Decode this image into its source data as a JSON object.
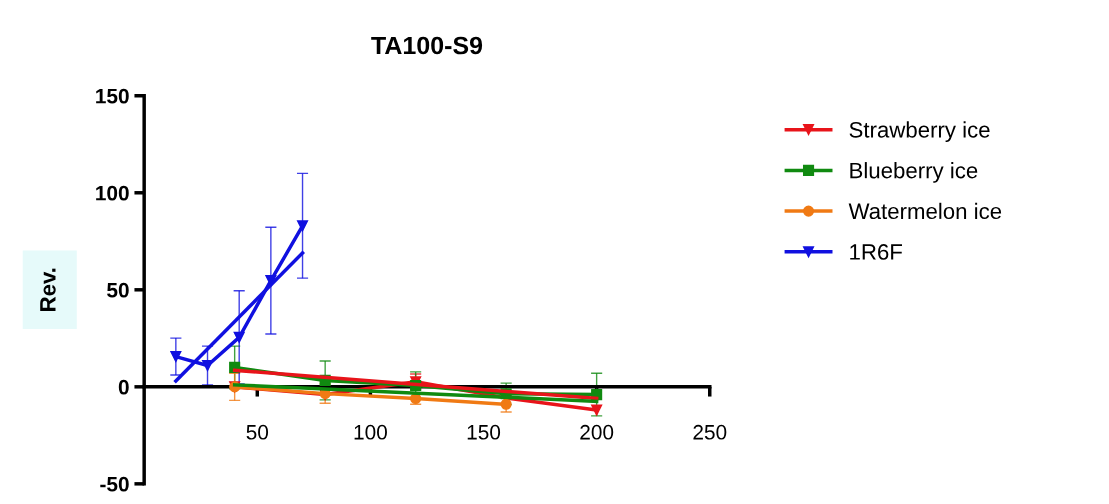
{
  "chart_data": {
    "type": "line",
    "title": "TA100-S9",
    "ylabel": "Rev.",
    "xlim": [
      0,
      250
    ],
    "xticks": [
      50,
      100,
      150,
      200,
      250
    ],
    "ylim": [
      -50,
      150
    ],
    "yticks": [
      -50,
      0,
      50,
      100,
      150
    ],
    "grid": false,
    "legend": "right",
    "line_style": "solid",
    "series": [
      {
        "name": "Strawberry ice",
        "color": "#e8141a",
        "marker": "triangle",
        "x": [
          40,
          80,
          120,
          160,
          200
        ],
        "values": [
          0,
          -4,
          2.6,
          -5.7,
          -12
        ],
        "errors": [
          null,
          null,
          4,
          null,
          null
        ]
      },
      {
        "name": "Blueberry ice",
        "color": "#108a10",
        "marker": "square",
        "x": [
          40,
          80,
          120,
          160,
          200
        ],
        "values": [
          10,
          3.3,
          0.7,
          -3.6,
          -4
        ],
        "errors": [
          11,
          10,
          7,
          5.5,
          11
        ]
      },
      {
        "name": "Watermelon ice",
        "color": "#f07a14",
        "marker": "circle",
        "x": [
          40,
          80,
          120,
          160
        ],
        "values": [
          0,
          -3.5,
          -6,
          -9
        ],
        "errors": [
          7,
          5,
          3,
          4
        ]
      },
      {
        "name": "1R6F",
        "color": "#1010e0",
        "marker": "triangle",
        "x": [
          14,
          28,
          42,
          56,
          70
        ],
        "values": [
          15.6,
          11,
          25.5,
          54.7,
          83
        ],
        "errors": [
          9.5,
          10,
          24,
          27.5,
          27
        ]
      },
      {
        "color": "#e8141a",
        "marker": "none",
        "x": [
          40,
          200
        ],
        "values": [
          8.5,
          -6
        ]
      },
      {
        "color": "#108a10",
        "marker": "none",
        "x": [
          40,
          200
        ],
        "values": [
          1,
          -7.5
        ]
      },
      {
        "color": "#1010e0",
        "marker": "none",
        "x": [
          14,
          70
        ],
        "values": [
          3,
          69
        ]
      }
    ]
  }
}
